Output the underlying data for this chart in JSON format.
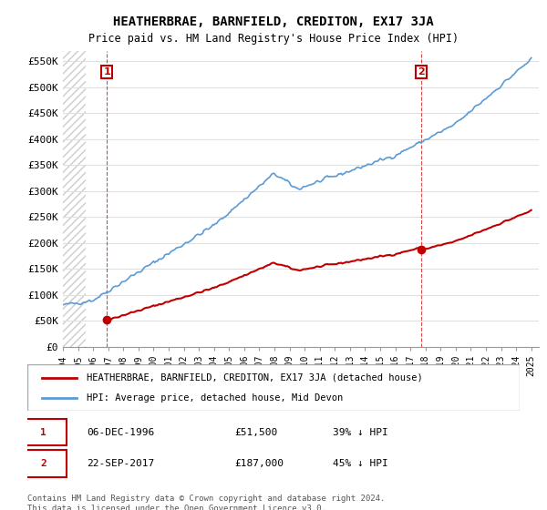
{
  "title": "HEATHERBRAE, BARNFIELD, CREDITON, EX17 3JA",
  "subtitle": "Price paid vs. HM Land Registry's House Price Index (HPI)",
  "ylabel_ticks": [
    "£0",
    "£50K",
    "£100K",
    "£150K",
    "£200K",
    "£250K",
    "£300K",
    "£350K",
    "£400K",
    "£450K",
    "£500K",
    "£550K"
  ],
  "ytick_values": [
    0,
    50000,
    100000,
    150000,
    200000,
    250000,
    300000,
    350000,
    400000,
    450000,
    500000,
    550000
  ],
  "ylim": [
    0,
    570000
  ],
  "xlim_start": 1994.0,
  "xlim_end": 2025.5,
  "purchase1_date": 1996.92,
  "purchase1_price": 51500,
  "purchase1_label": "1",
  "purchase2_date": 2017.72,
  "purchase2_price": 187000,
  "purchase2_label": "2",
  "hpi_color": "#5b9bd5",
  "price_color": "#c00000",
  "annotation_box_color": "#c00000",
  "grid_color": "#e0e0e0",
  "background_hatch_color": "#f0f0f0",
  "legend_label_red": "HEATHERBRAE, BARNFIELD, CREDITON, EX17 3JA (detached house)",
  "legend_label_blue": "HPI: Average price, detached house, Mid Devon",
  "note1_label": "1",
  "note1_date": "06-DEC-1996",
  "note1_price": "£51,500",
  "note1_hpi": "39% ↓ HPI",
  "note2_label": "2",
  "note2_date": "22-SEP-2017",
  "note2_price": "£187,000",
  "note2_hpi": "45% ↓ HPI",
  "footer": "Contains HM Land Registry data © Crown copyright and database right 2024.\nThis data is licensed under the Open Government Licence v3.0.",
  "title_fontsize": 10,
  "subtitle_fontsize": 9
}
